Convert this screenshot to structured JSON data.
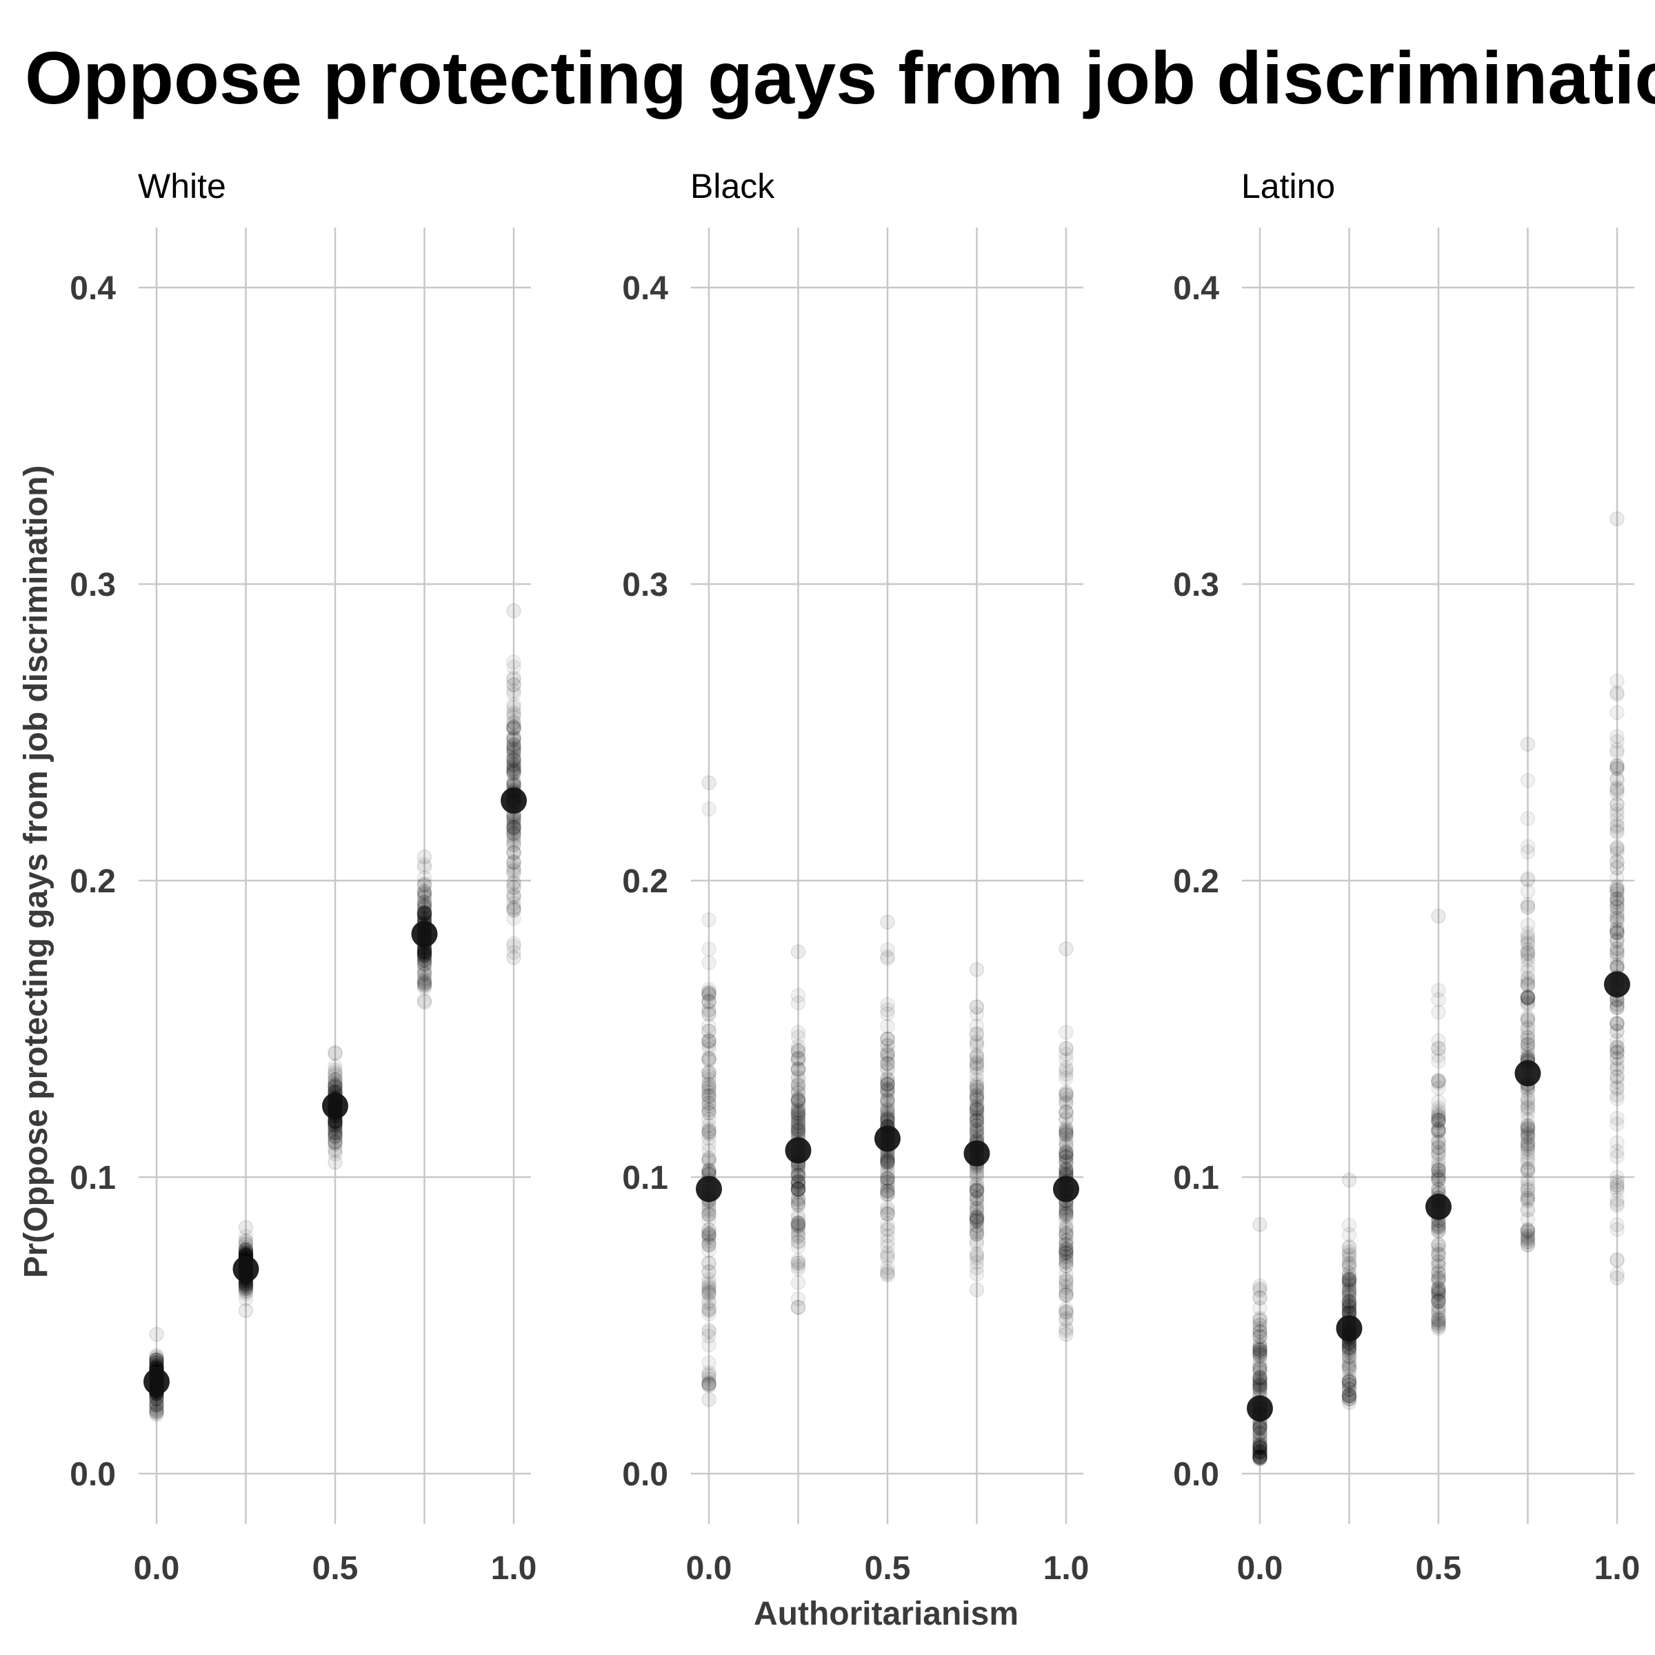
{
  "chart_data": {
    "type": "scatter",
    "title": "Oppose protecting gays from job discrimination",
    "xlabel": "Authoritarianism",
    "ylabel": "Pr(Oppose protecting gays from job discrimination)",
    "xlim": [
      -0.05,
      1.05
    ],
    "ylim": [
      -0.02,
      0.42
    ],
    "x_ticks": [
      0.0,
      0.25,
      0.5,
      0.75,
      1.0
    ],
    "x_tick_labels": [
      "0.0",
      "",
      "0.5",
      "",
      "1.0"
    ],
    "y_ticks": [
      0.0,
      0.1,
      0.2,
      0.3,
      0.4
    ],
    "y_tick_labels": [
      "0.0",
      "0.1",
      "0.2",
      "0.3",
      "0.4"
    ],
    "grid": true,
    "point_color": "#000000",
    "facets": [
      {
        "label": "White",
        "means": [
          {
            "x": 0.0,
            "y": 0.031
          },
          {
            "x": 0.25,
            "y": 0.069
          },
          {
            "x": 0.5,
            "y": 0.124
          },
          {
            "x": 0.75,
            "y": 0.182
          },
          {
            "x": 1.0,
            "y": 0.227
          }
        ],
        "spread": [
          {
            "x": 0.0,
            "min": 0.02,
            "max": 0.047
          },
          {
            "x": 0.25,
            "min": 0.055,
            "max": 0.083
          },
          {
            "x": 0.5,
            "min": 0.105,
            "max": 0.142
          },
          {
            "x": 0.75,
            "min": 0.159,
            "max": 0.208
          },
          {
            "x": 1.0,
            "min": 0.174,
            "max": 0.291
          }
        ]
      },
      {
        "label": "Black",
        "means": [
          {
            "x": 0.0,
            "y": 0.096
          },
          {
            "x": 0.25,
            "y": 0.109
          },
          {
            "x": 0.5,
            "y": 0.113
          },
          {
            "x": 0.75,
            "y": 0.108
          },
          {
            "x": 1.0,
            "y": 0.096
          }
        ],
        "spread": [
          {
            "x": 0.0,
            "min": 0.025,
            "max": 0.233
          },
          {
            "x": 0.25,
            "min": 0.056,
            "max": 0.176
          },
          {
            "x": 0.5,
            "min": 0.067,
            "max": 0.186
          },
          {
            "x": 0.75,
            "min": 0.062,
            "max": 0.17
          },
          {
            "x": 1.0,
            "min": 0.047,
            "max": 0.177
          }
        ]
      },
      {
        "label": "Latino",
        "means": [
          {
            "x": 0.0,
            "y": 0.022
          },
          {
            "x": 0.25,
            "y": 0.049
          },
          {
            "x": 0.5,
            "y": 0.09
          },
          {
            "x": 0.75,
            "y": 0.135
          },
          {
            "x": 1.0,
            "y": 0.165
          }
        ],
        "spread": [
          {
            "x": 0.0,
            "min": 0.005,
            "max": 0.084
          },
          {
            "x": 0.25,
            "min": 0.024,
            "max": 0.099
          },
          {
            "x": 0.5,
            "min": 0.049,
            "max": 0.188
          },
          {
            "x": 0.75,
            "min": 0.077,
            "max": 0.246
          },
          {
            "x": 1.0,
            "min": 0.066,
            "max": 0.322
          }
        ]
      }
    ]
  }
}
